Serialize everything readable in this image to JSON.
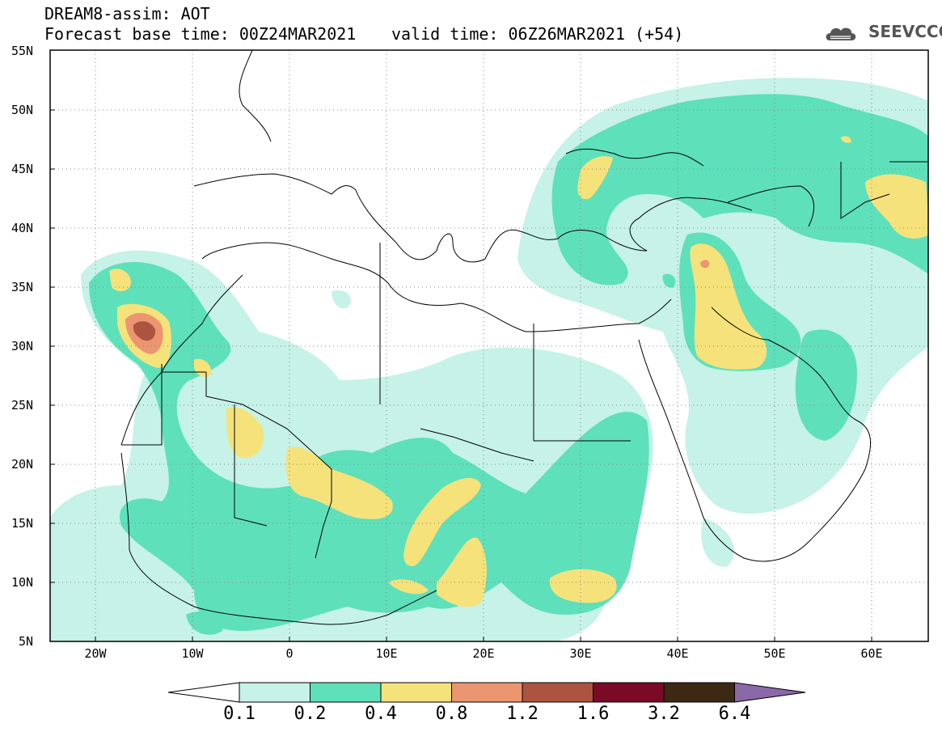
{
  "header": {
    "line1": "DREAM8-assim: AOT",
    "line2": "Forecast base time: 00Z24MAR2021",
    "line3": "valid time: 06Z26MAR2021 (+54)",
    "logo": "SEEVCCC"
  },
  "map": {
    "projection": "lat-lon",
    "lon_range": [
      -25,
      65
    ],
    "lat_range": [
      5,
      55
    ],
    "grid": "dotted",
    "lat_ticks": [
      "55N",
      "50N",
      "45N",
      "40N",
      "35N",
      "30N",
      "25N",
      "20N",
      "15N",
      "10N",
      "5N"
    ],
    "lon_ticks": [
      "20W",
      "10W",
      "0",
      "10E",
      "20E",
      "30E",
      "40E",
      "50E",
      "60E"
    ]
  },
  "colorbar": {
    "labels": [
      "0.1",
      "0.2",
      "0.4",
      "0.8",
      "1.2",
      "1.6",
      "3.2",
      "6.4"
    ],
    "colors": [
      "#ffffff",
      "#c6f2e8",
      "#5ee0bb",
      "#f5e27a",
      "#eb9670",
      "#ad5440",
      "#7a0a25",
      "#3d2814",
      "#8b68a8"
    ]
  }
}
